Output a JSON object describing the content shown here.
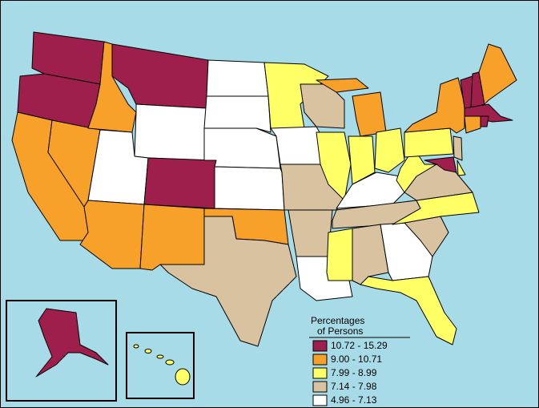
{
  "legend": {
    "title_lines": [
      "Percentages",
      "of Persons"
    ],
    "entries": [
      {
        "label": "10.72 - 15.29",
        "color": "#9e1f4c"
      },
      {
        "label": "9.00 - 10.71",
        "color": "#f7a02a"
      },
      {
        "label": "7.99 - 8.99",
        "color": "#ffff66"
      },
      {
        "label": "7.14 - 7.98",
        "color": "#d8c2a0"
      },
      {
        "label": "4.96 - 7.13",
        "color": "#ffffff"
      }
    ]
  }
}
